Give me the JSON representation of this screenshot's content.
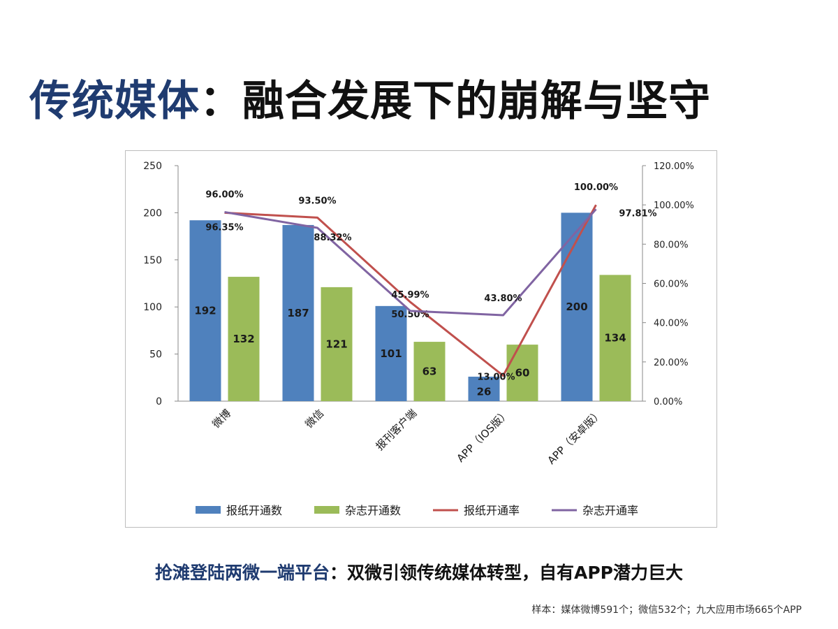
{
  "header": {
    "title_part1": "传统媒体",
    "title_part2": "：融合发展下的崩解与坚守"
  },
  "footer": {
    "subtitle_part1": "抢滩登陆两微一端平台",
    "subtitle_part2": "：双微引领传统媒体转型，自有APP潜力巨大",
    "note": "样本：媒体微博591个；微信532个；九大应用市场665个APP"
  },
  "chart_data": {
    "type": "bar",
    "categories": [
      "微博",
      "微信",
      "报刊客户端",
      "APP（IOS版）",
      "APP（安卓版）"
    ],
    "series": [
      {
        "name": "报纸开通数",
        "type": "bar",
        "axis": "left",
        "values": [
          192,
          187,
          101,
          26,
          200
        ],
        "labels": [
          "192",
          "187",
          "101",
          "26",
          "200"
        ],
        "color": "#4f81bd"
      },
      {
        "name": "杂志开通数",
        "type": "bar",
        "axis": "left",
        "values": [
          132,
          121,
          63,
          60,
          134
        ],
        "labels": [
          "132",
          "121",
          "63",
          "60",
          "134"
        ],
        "color": "#9bbb59"
      },
      {
        "name": "报纸开通率",
        "type": "line",
        "axis": "right",
        "values": [
          96.0,
          93.5,
          50.5,
          13.0,
          100.0
        ],
        "labels": [
          "96.00%",
          "93.50%",
          "50.50%",
          "13.00%",
          "100.00%"
        ],
        "color": "#c0504d"
      },
      {
        "name": "杂志开通率",
        "type": "line",
        "axis": "right",
        "values": [
          96.35,
          88.32,
          45.99,
          43.8,
          97.81
        ],
        "labels": [
          "96.35%",
          "88.32%",
          "45.99%",
          "43.80%",
          "97.81%"
        ],
        "color": "#8064a2"
      }
    ],
    "y_left": {
      "range": [
        0,
        250
      ],
      "ticks": [
        "0",
        "50",
        "100",
        "150",
        "200",
        "250"
      ]
    },
    "y_right": {
      "range": [
        0,
        120
      ],
      "ticks": [
        "0.00%",
        "20.00%",
        "40.00%",
        "60.00%",
        "80.00%",
        "100.00%",
        "120.00%"
      ]
    },
    "grid": false,
    "legend": "bottom"
  }
}
